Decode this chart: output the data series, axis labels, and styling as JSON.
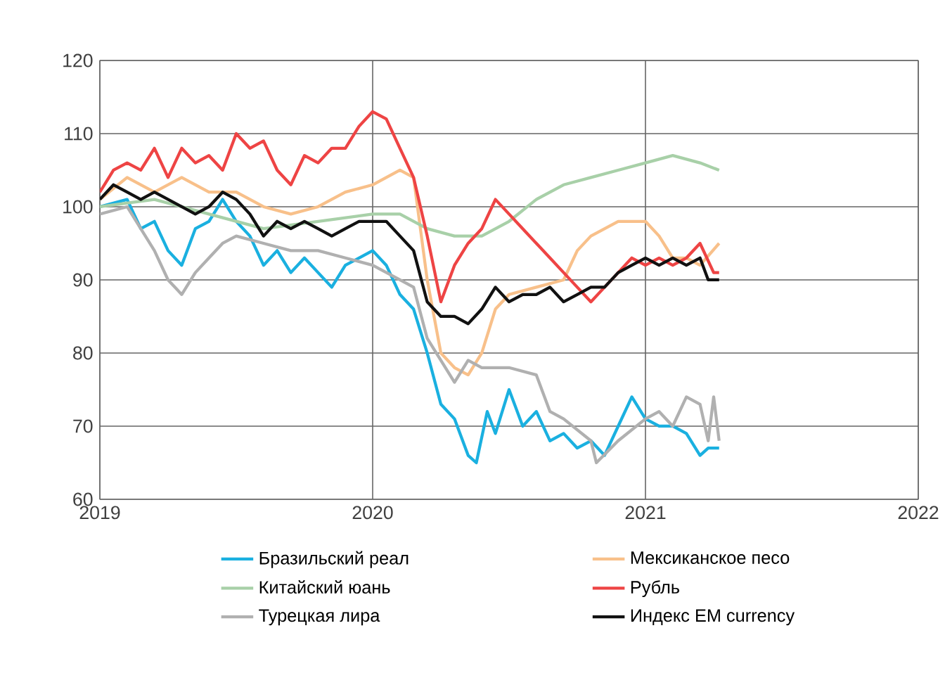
{
  "chart_data": {
    "type": "line",
    "xlim": [
      2019,
      2022
    ],
    "xticks": [
      2019,
      2020,
      2021,
      2022
    ],
    "ylim": [
      60,
      120
    ],
    "yticks": [
      60,
      70,
      80,
      90,
      100,
      110,
      120
    ],
    "grid": true,
    "legend": "bottom",
    "line_style": "solid",
    "marker": "none",
    "series": [
      {
        "name": "Бразильский реал",
        "color": "#1ab0e0",
        "x": [
          2019,
          2019.1,
          2019.15,
          2019.2,
          2019.25,
          2019.3,
          2019.35,
          2019.4,
          2019.45,
          2019.5,
          2019.55,
          2019.6,
          2019.65,
          2019.7,
          2019.75,
          2019.8,
          2019.85,
          2019.9,
          2019.95,
          2020.0,
          2020.05,
          2020.1,
          2020.15,
          2020.2,
          2020.25,
          2020.3,
          2020.35,
          2020.38,
          2020.42,
          2020.45,
          2020.5,
          2020.55,
          2020.6,
          2020.65,
          2020.7,
          2020.75,
          2020.8,
          2020.85,
          2020.9,
          2020.95,
          2021.0,
          2021.05,
          2021.1,
          2021.15,
          2021.2,
          2021.23,
          2021.27
        ],
        "values": [
          100,
          101,
          97,
          98,
          94,
          92,
          97,
          98,
          101,
          98,
          96,
          92,
          94,
          91,
          93,
          91,
          89,
          92,
          93,
          94,
          92,
          88,
          86,
          80,
          73,
          71,
          66,
          65,
          72,
          69,
          75,
          70,
          72,
          68,
          69,
          67,
          68,
          66,
          70,
          74,
          71,
          70,
          70,
          69,
          66,
          67,
          67
        ]
      },
      {
        "name": "Мексиканское песо",
        "color": "#f8c08a",
        "x": [
          2019,
          2019.1,
          2019.2,
          2019.3,
          2019.4,
          2019.5,
          2019.6,
          2019.7,
          2019.8,
          2019.9,
          2020.0,
          2020.1,
          2020.15,
          2020.2,
          2020.25,
          2020.3,
          2020.35,
          2020.4,
          2020.45,
          2020.5,
          2020.6,
          2020.7,
          2020.75,
          2020.8,
          2020.9,
          2021.0,
          2021.05,
          2021.1,
          2021.15,
          2021.2,
          2021.27
        ],
        "values": [
          101,
          104,
          102,
          104,
          102,
          102,
          100,
          99,
          100,
          102,
          103,
          105,
          104,
          90,
          80,
          78,
          77,
          80,
          86,
          88,
          89,
          90,
          94,
          96,
          98,
          98,
          96,
          93,
          93,
          92,
          95
        ]
      },
      {
        "name": "Китайский юань",
        "color": "#a8d0a8",
        "x": [
          2019,
          2019.2,
          2019.4,
          2019.6,
          2019.8,
          2020.0,
          2020.1,
          2020.2,
          2020.3,
          2020.4,
          2020.5,
          2020.6,
          2020.7,
          2020.8,
          2020.9,
          2021.0,
          2021.1,
          2021.2,
          2021.27
        ],
        "values": [
          100,
          101,
          99,
          97,
          98,
          99,
          99,
          97,
          96,
          96,
          98,
          101,
          103,
          104,
          105,
          106,
          107,
          106,
          105
        ]
      },
      {
        "name": "Рубль",
        "color": "#ee4444",
        "x": [
          2019,
          2019.05,
          2019.1,
          2019.15,
          2019.2,
          2019.25,
          2019.3,
          2019.35,
          2019.4,
          2019.45,
          2019.5,
          2019.55,
          2019.6,
          2019.65,
          2019.7,
          2019.75,
          2019.8,
          2019.85,
          2019.9,
          2019.95,
          2020.0,
          2020.05,
          2020.1,
          2020.15,
          2020.2,
          2020.25,
          2020.3,
          2020.35,
          2020.4,
          2020.45,
          2020.5,
          2020.55,
          2020.6,
          2020.65,
          2020.7,
          2020.75,
          2020.8,
          2020.85,
          2020.9,
          2020.95,
          2021.0,
          2021.05,
          2021.1,
          2021.15,
          2021.2,
          2021.25,
          2021.27
        ],
        "values": [
          102,
          105,
          106,
          105,
          108,
          104,
          108,
          106,
          107,
          105,
          110,
          108,
          109,
          105,
          103,
          107,
          106,
          108,
          108,
          111,
          113,
          112,
          108,
          104,
          96,
          87,
          92,
          95,
          97,
          101,
          99,
          97,
          95,
          93,
          91,
          89,
          87,
          89,
          91,
          93,
          92,
          93,
          92,
          93,
          95,
          91,
          91
        ]
      },
      {
        "name": "Турецкая лира",
        "color": "#b0b0b0",
        "x": [
          2019,
          2019.1,
          2019.15,
          2019.2,
          2019.25,
          2019.3,
          2019.35,
          2019.4,
          2019.45,
          2019.5,
          2019.6,
          2019.7,
          2019.8,
          2019.9,
          2020.0,
          2020.1,
          2020.15,
          2020.2,
          2020.25,
          2020.3,
          2020.35,
          2020.4,
          2020.5,
          2020.6,
          2020.65,
          2020.7,
          2020.8,
          2020.82,
          2020.9,
          2021.0,
          2021.05,
          2021.1,
          2021.15,
          2021.2,
          2021.23,
          2021.25,
          2021.27
        ],
        "values": [
          99,
          100,
          97,
          94,
          90,
          88,
          91,
          93,
          95,
          96,
          95,
          94,
          94,
          93,
          92,
          90,
          89,
          82,
          79,
          76,
          79,
          78,
          78,
          77,
          72,
          71,
          68,
          65,
          68,
          71,
          72,
          70,
          74,
          73,
          68,
          74,
          68
        ]
      },
      {
        "name": "Индекс EM currency",
        "color": "#111111",
        "x": [
          2019,
          2019.05,
          2019.1,
          2019.15,
          2019.2,
          2019.3,
          2019.35,
          2019.4,
          2019.45,
          2019.5,
          2019.55,
          2019.6,
          2019.65,
          2019.7,
          2019.75,
          2019.8,
          2019.85,
          2019.9,
          2019.95,
          2020.0,
          2020.05,
          2020.1,
          2020.15,
          2020.2,
          2020.25,
          2020.3,
          2020.35,
          2020.4,
          2020.45,
          2020.5,
          2020.55,
          2020.6,
          2020.65,
          2020.7,
          2020.75,
          2020.8,
          2020.85,
          2020.9,
          2020.95,
          2021.0,
          2021.05,
          2021.1,
          2021.15,
          2021.2,
          2021.23,
          2021.27
        ],
        "values": [
          101,
          103,
          102,
          101,
          102,
          100,
          99,
          100,
          102,
          101,
          99,
          96,
          98,
          97,
          98,
          97,
          96,
          97,
          98,
          98,
          98,
          96,
          94,
          87,
          85,
          85,
          84,
          86,
          89,
          87,
          88,
          88,
          89,
          87,
          88,
          89,
          89,
          91,
          92,
          93,
          92,
          93,
          92,
          93,
          90,
          90
        ]
      }
    ]
  }
}
